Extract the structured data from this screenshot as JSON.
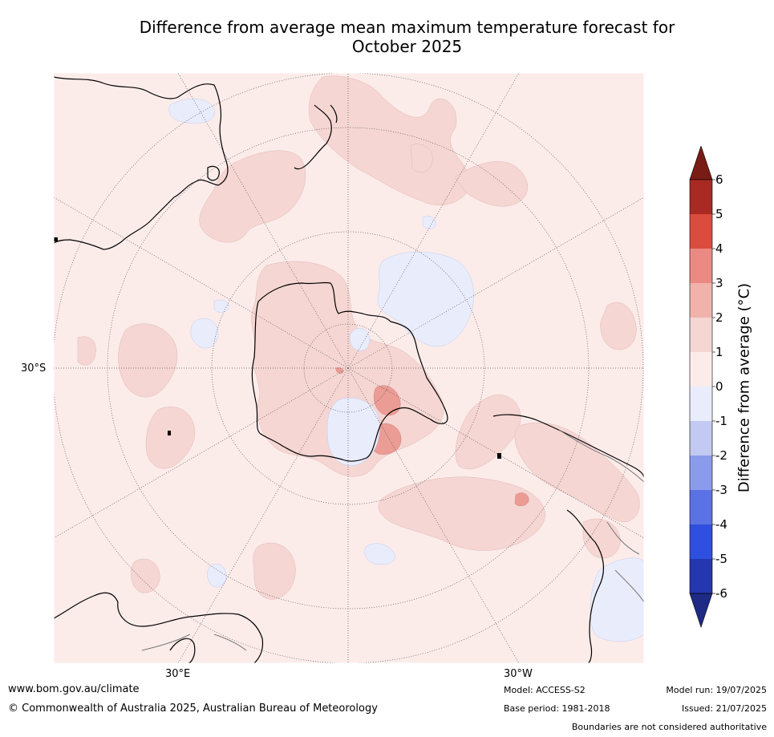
{
  "title_line1": "Difference from average mean maximum temperature forecast for",
  "title_line2": "October 2025",
  "map_labels": {
    "lat_30s": "30°S",
    "lon_30e": "30°E",
    "lon_30w": "30°W"
  },
  "colorbar": {
    "title": "Difference from average (°C)",
    "ticks": [
      "6",
      "5",
      "4",
      "3",
      "2",
      "1",
      "0",
      "-1",
      "-2",
      "-3",
      "-4",
      "-5",
      "-6"
    ],
    "colors_top_to_bottom": [
      "#7a1c16",
      "#a82a22",
      "#db4c3e",
      "#eb8a82",
      "#f0b2ab",
      "#f5d6d3",
      "#fbecea",
      "#e9edfb",
      "#c2c9f2",
      "#8b9bec",
      "#5a72e3",
      "#2f4fe0",
      "#2436b0",
      "#1e2a85"
    ],
    "extend_top_color": "#7a1c16",
    "extend_bottom_color": "#1e2a85"
  },
  "footer": {
    "url": "www.bom.gov.au/climate",
    "copyright": "© Commonwealth of Australia 2025, Australian Bureau of Meteorology",
    "model": "Model: ACCESS-S2",
    "base_period": "Base period: 1981-2018",
    "model_run": "Model run: 19/07/2025",
    "issued": "Issued: 21/07/2025",
    "disclaimer": "Boundaries are not considered authoritative"
  }
}
